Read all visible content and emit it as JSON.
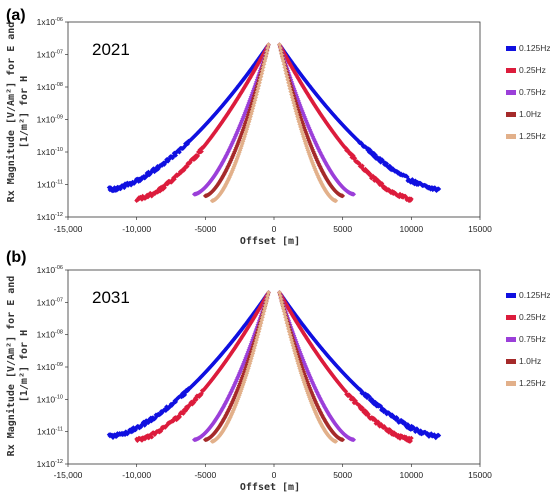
{
  "chart_data": [
    {
      "type": "scatter",
      "panel_label": "(a)",
      "annotation": "2021",
      "xlabel": "Offset [m]",
      "ylabel_line1": "Rx Magnitude [V/Am²] for E and",
      "ylabel_line2": "[1/m²] for H",
      "xlim": [
        -15000,
        15000
      ],
      "ylim_log10": [
        -12,
        -6
      ],
      "x_ticks": [
        "-15,000",
        "-10,000",
        "-5000",
        "0",
        "5000",
        "10000",
        "15000"
      ],
      "x_tick_values": [
        -15000,
        -10000,
        -5000,
        0,
        5000,
        10000,
        15000
      ],
      "y_ticks": [
        {
          "base": "1x10",
          "exp": "-06",
          "value": -6
        },
        {
          "base": "1x10",
          "exp": "-07",
          "value": -7
        },
        {
          "base": "1x10",
          "exp": "-08",
          "value": -8
        },
        {
          "base": "1x10",
          "exp": "-09",
          "value": -9
        },
        {
          "base": "1x10",
          "exp": "-10",
          "value": -10
        },
        {
          "base": "1x10",
          "exp": "-11",
          "value": -11
        },
        {
          "base": "1x10",
          "exp": "-12",
          "value": -12
        }
      ],
      "legend_position": "right",
      "series": [
        {
          "name": "0.125Hz",
          "color": "#1010e0",
          "x_max": 12000,
          "log10_y_at_far": -11.15,
          "noise": true
        },
        {
          "name": "0.25Hz",
          "color": "#dc1c3c",
          "x_max": 10000,
          "log10_y_at_far": -11.45,
          "noise": true
        },
        {
          "name": "0.75Hz",
          "color": "#9b3fd9",
          "x_max": 5800,
          "log10_y_at_far": -11.3,
          "noise": false
        },
        {
          "name": "1.0Hz",
          "color": "#a52a2a",
          "x_max": 5000,
          "log10_y_at_far": -11.35,
          "noise": false
        },
        {
          "name": "1.25Hz",
          "color": "#e2b08a",
          "x_max": 4500,
          "log10_y_at_far": -11.5,
          "noise": false
        }
      ],
      "peak_log10_y": -6.7,
      "peak_offset": 400
    },
    {
      "type": "scatter",
      "panel_label": "(b)",
      "annotation": "2031",
      "xlabel": "Offset [m]",
      "ylabel_line1": "Rx Magnitude [V/Am²] for E and",
      "ylabel_line2": "[1/m²] for H",
      "xlim": [
        -15000,
        15000
      ],
      "ylim_log10": [
        -12,
        -6
      ],
      "x_ticks": [
        "-15,000",
        "-10,000",
        "-5000",
        "0",
        "5000",
        "10000",
        "15000"
      ],
      "x_tick_values": [
        -15000,
        -10000,
        -5000,
        0,
        5000,
        10000,
        15000
      ],
      "y_ticks": [
        {
          "base": "1x10",
          "exp": "-06",
          "value": -6
        },
        {
          "base": "1x10",
          "exp": "-07",
          "value": -7
        },
        {
          "base": "1x10",
          "exp": "-08",
          "value": -8
        },
        {
          "base": "1x10",
          "exp": "-09",
          "value": -9
        },
        {
          "base": "1x10",
          "exp": "-10",
          "value": -10
        },
        {
          "base": "1x10",
          "exp": "-11",
          "value": -11
        },
        {
          "base": "1x10",
          "exp": "-12",
          "value": -12
        }
      ],
      "legend_position": "right",
      "series": [
        {
          "name": "0.125Hz",
          "color": "#1010e0",
          "x_max": 12000,
          "log10_y_at_far": -11.15,
          "noise": true
        },
        {
          "name": "0.25Hz",
          "color": "#dc1c3c",
          "x_max": 10000,
          "log10_y_at_far": -11.25,
          "noise": true
        },
        {
          "name": "0.75Hz",
          "color": "#9b3fd9",
          "x_max": 5800,
          "log10_y_at_far": -11.25,
          "noise": false
        },
        {
          "name": "1.0Hz",
          "color": "#a52a2a",
          "x_max": 5000,
          "log10_y_at_far": -11.25,
          "noise": false
        },
        {
          "name": "1.25Hz",
          "color": "#e2b08a",
          "x_max": 4500,
          "log10_y_at_far": -11.3,
          "noise": false
        }
      ],
      "peak_log10_y": -6.7,
      "peak_offset": 400
    }
  ]
}
